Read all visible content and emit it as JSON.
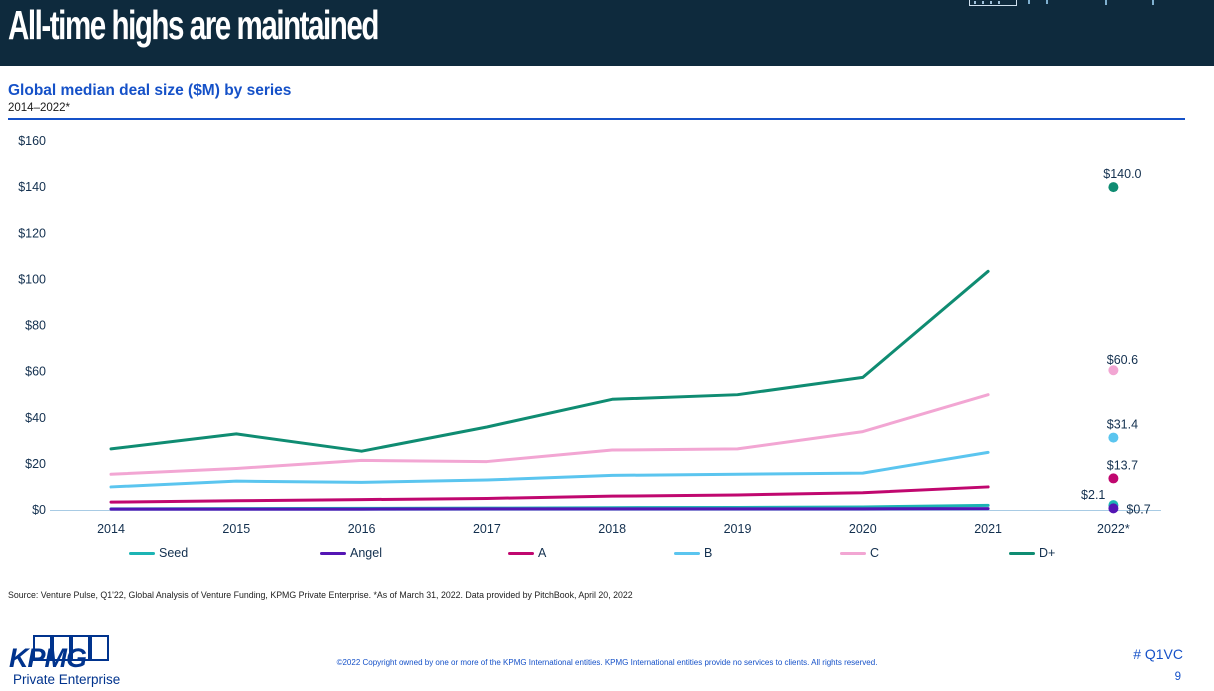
{
  "header": {
    "title": "All-time highs are maintained"
  },
  "chart_header": {
    "title": "Global median deal size ($M) by series",
    "subtitle": "2014–2022*"
  },
  "chart_data": {
    "type": "line",
    "title": "Global median deal size ($M) by series",
    "subtitle": "2014–2022*",
    "x": [
      "2014",
      "2015",
      "2016",
      "2017",
      "2018",
      "2019",
      "2020",
      "2021",
      "2022*"
    ],
    "ylim": [
      0,
      160
    ],
    "ytick_step": 20,
    "ytick_labels": [
      "$0",
      "$20",
      "$40",
      "$60",
      "$80",
      "$100",
      "$120",
      "$140",
      "$160"
    ],
    "grid": false,
    "legend_position": "bottom",
    "note": "Lines span 2014-2021; 2022* values are shown as isolated labeled dots",
    "series": [
      {
        "name": "Seed",
        "color": "#1CB4B4",
        "values": [
          0.5,
          0.6,
          0.7,
          0.8,
          1.0,
          1.1,
          1.3,
          2.0,
          2.1
        ],
        "end_label": "$2.1"
      },
      {
        "name": "Angel",
        "color": "#5415B4",
        "values": [
          0.4,
          0.4,
          0.4,
          0.5,
          0.5,
          0.5,
          0.5,
          0.6,
          0.7
        ],
        "end_label": "$0.7"
      },
      {
        "name": "A",
        "color": "#C0076F",
        "values": [
          3.4,
          4.0,
          4.5,
          5.0,
          6.0,
          6.5,
          7.5,
          10.0,
          13.7
        ],
        "end_label": "$13.7"
      },
      {
        "name": "B",
        "color": "#5BC5EF",
        "values": [
          10.0,
          12.5,
          12.0,
          13.0,
          15.0,
          15.5,
          16.0,
          25.0,
          31.4
        ],
        "end_label": "$31.4"
      },
      {
        "name": "C",
        "color": "#F2A6D3",
        "values": [
          15.5,
          18.0,
          21.5,
          21.0,
          26.0,
          26.5,
          34.0,
          50.0,
          60.6
        ],
        "end_label": "$60.6"
      },
      {
        "name": "D+",
        "color": "#0F8C72",
        "values": [
          26.5,
          33.0,
          25.5,
          36.0,
          48.0,
          50.0,
          57.5,
          103.5,
          140.0
        ],
        "end_label": "$140.0"
      }
    ],
    "colors": {
      "axis_line": "#A8CBE4",
      "tick_text": "#13304F"
    }
  },
  "source": "Source: Venture Pulse, Q1'22, Global Analysis of Venture Funding, KPMG Private Enterprise. *As of March 31, 2022. Data provided by PitchBook, April 20, 2022",
  "footer": {
    "logo_text": "KPMG",
    "logo_subtext": "Private Enterprise",
    "copyright": "©2022 Copyright owned by one or more of the KPMG International entities. KPMG International entities provide no services to clients. All rights reserved.",
    "hashtag": "# Q1VC",
    "page_number": "9"
  },
  "theme": {
    "header_bg": "#0E2A3D",
    "accent_blue": "#1551C8",
    "kpmg_blue": "#00338D"
  }
}
